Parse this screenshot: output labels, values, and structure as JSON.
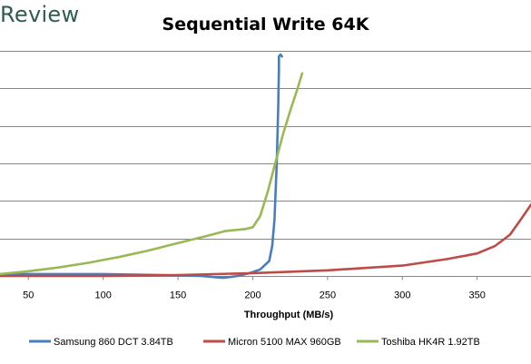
{
  "header": {
    "brand": "Review"
  },
  "chart_data": {
    "type": "line",
    "title": "Sequential Write 64K",
    "xlabel": "Throughput (MB/s)",
    "ylabel": "",
    "x_ticks": [
      50,
      100,
      150,
      200,
      250,
      300,
      350
    ],
    "xlim": [
      31,
      386
    ],
    "ylim": [
      0,
      12
    ],
    "y_gridlines": [
      2,
      4,
      6,
      8,
      10,
      12
    ],
    "grid": true,
    "legend_position": "bottom",
    "series": [
      {
        "name": "Samsung 860 DCT 3.84TB",
        "color": "#4a7ebb",
        "points": [
          [
            31,
            0.1
          ],
          [
            60,
            0.1
          ],
          [
            100,
            0.1
          ],
          [
            140,
            0.05
          ],
          [
            165,
            0.0
          ],
          [
            180,
            -0.1
          ],
          [
            190,
            0.0
          ],
          [
            198,
            0.15
          ],
          [
            205,
            0.35
          ],
          [
            211,
            0.8
          ],
          [
            213,
            1.6
          ],
          [
            214.5,
            3.0
          ],
          [
            216,
            6.0
          ],
          [
            217,
            9.0
          ],
          [
            217.5,
            11.0
          ],
          [
            217.5,
            11.7
          ],
          [
            218.5,
            11.8
          ],
          [
            219.5,
            11.7
          ]
        ]
      },
      {
        "name": "Micron 5100 MAX 960GB",
        "color": "#be4b48",
        "points": [
          [
            31,
            0.0
          ],
          [
            100,
            0.0
          ],
          [
            150,
            0.05
          ],
          [
            200,
            0.15
          ],
          [
            250,
            0.3
          ],
          [
            300,
            0.55
          ],
          [
            330,
            0.9
          ],
          [
            350,
            1.2
          ],
          [
            362,
            1.6
          ],
          [
            372,
            2.2
          ],
          [
            380,
            3.1
          ],
          [
            386,
            3.8
          ]
        ]
      },
      {
        "name": "Toshiba HK4R 1.92TB",
        "color": "#98b954",
        "points": [
          [
            31,
            0.1
          ],
          [
            50,
            0.25
          ],
          [
            70,
            0.45
          ],
          [
            90,
            0.7
          ],
          [
            110,
            1.0
          ],
          [
            130,
            1.35
          ],
          [
            150,
            1.75
          ],
          [
            170,
            2.15
          ],
          [
            182,
            2.4
          ],
          [
            195,
            2.5
          ],
          [
            200,
            2.6
          ],
          [
            205,
            3.2
          ],
          [
            210,
            4.5
          ],
          [
            215,
            6.0
          ],
          [
            220,
            7.5
          ],
          [
            225,
            8.8
          ],
          [
            230,
            10.0
          ],
          [
            233,
            10.8
          ]
        ]
      }
    ]
  }
}
